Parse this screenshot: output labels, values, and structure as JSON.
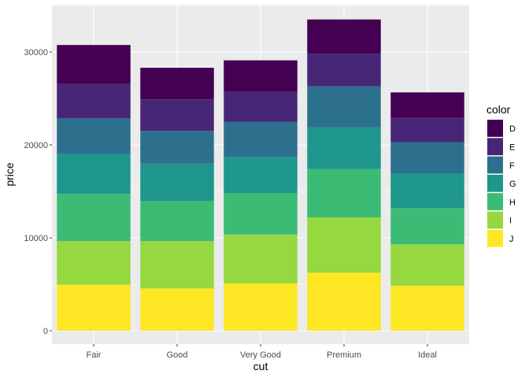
{
  "chart_data": {
    "type": "bar",
    "stacked": true,
    "xlabel": "cut",
    "ylabel": "price",
    "categories": [
      "Fair",
      "Good",
      "Very Good",
      "Premium",
      "Ideal"
    ],
    "ylim": [
      0,
      34800
    ],
    "yticks": [
      0,
      10000,
      20000,
      30000
    ],
    "ytick_labels": [
      "0",
      "10000",
      "20000",
      "30000"
    ],
    "legend": {
      "title": "color",
      "position": "right"
    },
    "grid": true,
    "series": [
      {
        "name": "J",
        "color": "#FDE725",
        "values": [
          4950,
          4550,
          5100,
          6250,
          4850
        ]
      },
      {
        "name": "I",
        "color": "#95D840",
        "values": [
          4700,
          5100,
          5250,
          5950,
          4450
        ]
      },
      {
        "name": "H",
        "color": "#3CBB75",
        "values": [
          5100,
          4300,
          4450,
          5200,
          3900
        ]
      },
      {
        "name": "G",
        "color": "#1F968B",
        "values": [
          4250,
          4050,
          3900,
          4500,
          3750
        ]
      },
      {
        "name": "F",
        "color": "#2D708E",
        "values": [
          3850,
          3500,
          3800,
          4400,
          3350
        ]
      },
      {
        "name": "E",
        "color": "#482677",
        "values": [
          3700,
          3400,
          3200,
          3500,
          2600
        ]
      },
      {
        "name": "D",
        "color": "#440154",
        "values": [
          4200,
          3400,
          3400,
          3700,
          2750
        ]
      }
    ]
  }
}
